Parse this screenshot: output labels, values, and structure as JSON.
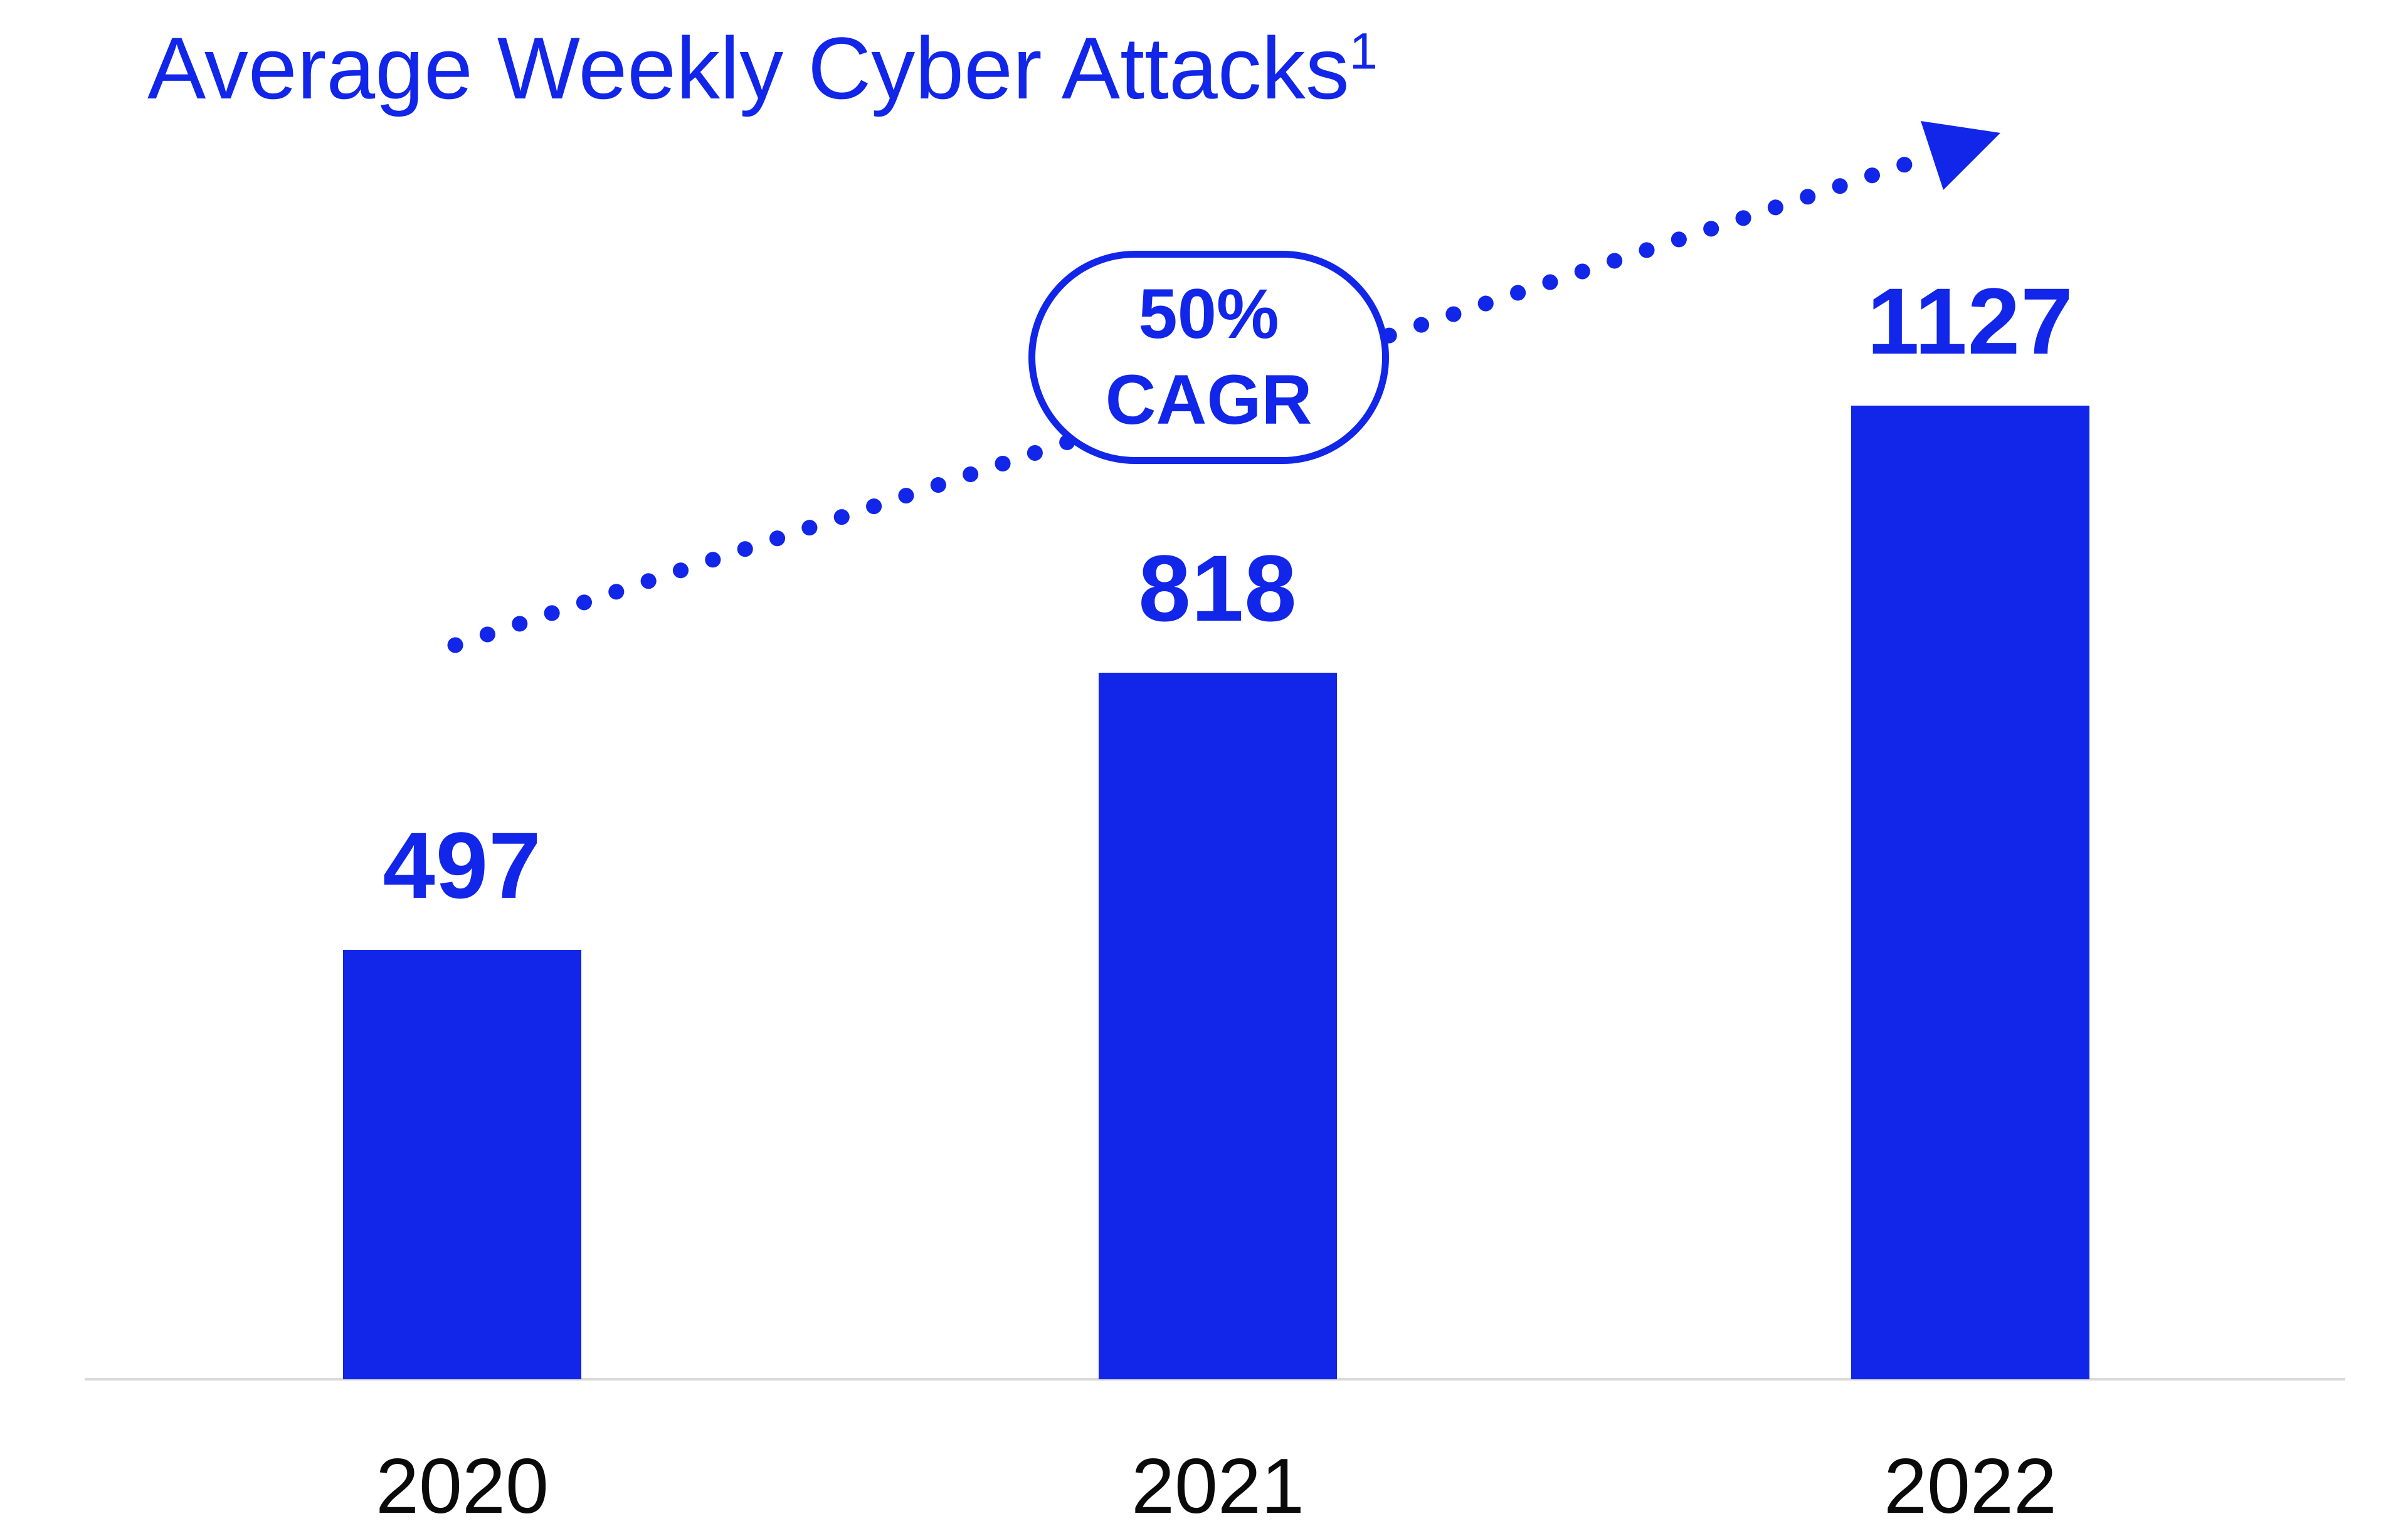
{
  "colors": {
    "accent": "#1126e8",
    "axis_line": "#dadada",
    "label_text": "#0a0a0a",
    "background": "#ffffff"
  },
  "badge": {
    "line1": "50%",
    "line2": "CAGR"
  },
  "chart_data": {
    "type": "bar",
    "title": "Average Weekly Cyber Attacks",
    "title_superscript": "1",
    "categories": [
      "2020",
      "2021",
      "2022"
    ],
    "values": [
      497,
      818,
      1127
    ],
    "xlabel": "",
    "ylabel": "",
    "ylim": [
      0,
      1200
    ],
    "bar_color": "#1126e8",
    "grid": false,
    "legend_position": "none",
    "annotation": "50% CAGR",
    "annotation_style": "outlined pill badge on dotted upward trend arrow"
  }
}
